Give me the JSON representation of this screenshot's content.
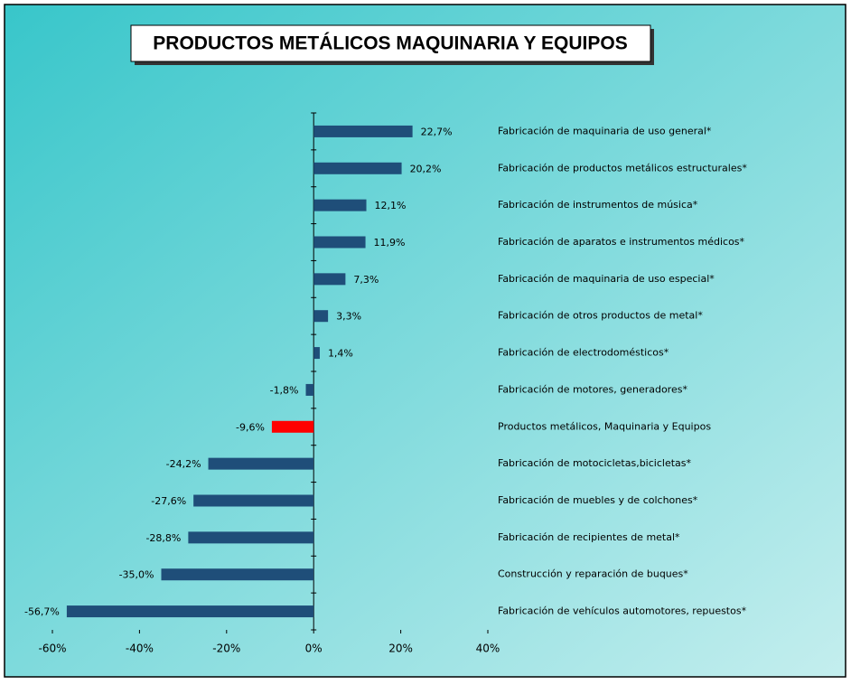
{
  "chart_data": {
    "type": "barh",
    "title": "PRODUCTOS METÁLICOS MAQUINARIA Y EQUIPOS",
    "categories": [
      "Fabricación de maquinaria de uso general*",
      "Fabricación de productos metálicos estructurales*",
      "Fabricación de instrumentos de música*",
      "Fabricación de aparatos e instrumentos médicos*",
      "Fabricación de maquinaria de uso especial*",
      "Fabricación de otros productos de metal*",
      "Fabricación de electrodomésticos*",
      "Fabricación de motores, generadores*",
      "Productos metálicos, Maquinaria y Equipos",
      "Fabricación de motocicletas,bicicletas*",
      "Fabricación de muebles y de colchones*",
      "Fabricación de recipientes de metal*",
      "Construcción y reparación de buques*",
      "Fabricación de vehículos automotores, repuestos*"
    ],
    "values": [
      22.7,
      20.2,
      12.1,
      11.9,
      7.3,
      3.3,
      1.4,
      -1.8,
      -9.6,
      -24.2,
      -27.6,
      -28.8,
      -35.0,
      -56.7
    ],
    "value_labels": [
      "22,7%",
      "20,2%",
      "12,1%",
      "11,9%",
      "7,3%",
      "3,3%",
      "1,4%",
      "-1,8%",
      "-9,6%",
      "-24,2%",
      "-27,6%",
      "-28,8%",
      "-35,0%",
      "-56,7%"
    ],
    "colors": [
      "#1f4e79",
      "#1f4e79",
      "#1f4e79",
      "#1f4e79",
      "#1f4e79",
      "#1f4e79",
      "#1f4e79",
      "#1f4e79",
      "#ff0000",
      "#1f4e79",
      "#1f4e79",
      "#1f4e79",
      "#1f4e79",
      "#1f4e79"
    ],
    "xlim": [
      -60,
      40
    ],
    "xticks": [
      {
        "value": -60,
        "label": "-60%"
      },
      {
        "value": -40,
        "label": "-40%"
      },
      {
        "value": -20,
        "label": "-20%"
      },
      {
        "value": 0,
        "label": "0%"
      },
      {
        "value": 20,
        "label": "20%"
      },
      {
        "value": 40,
        "label": "40%"
      }
    ],
    "grid": false
  }
}
